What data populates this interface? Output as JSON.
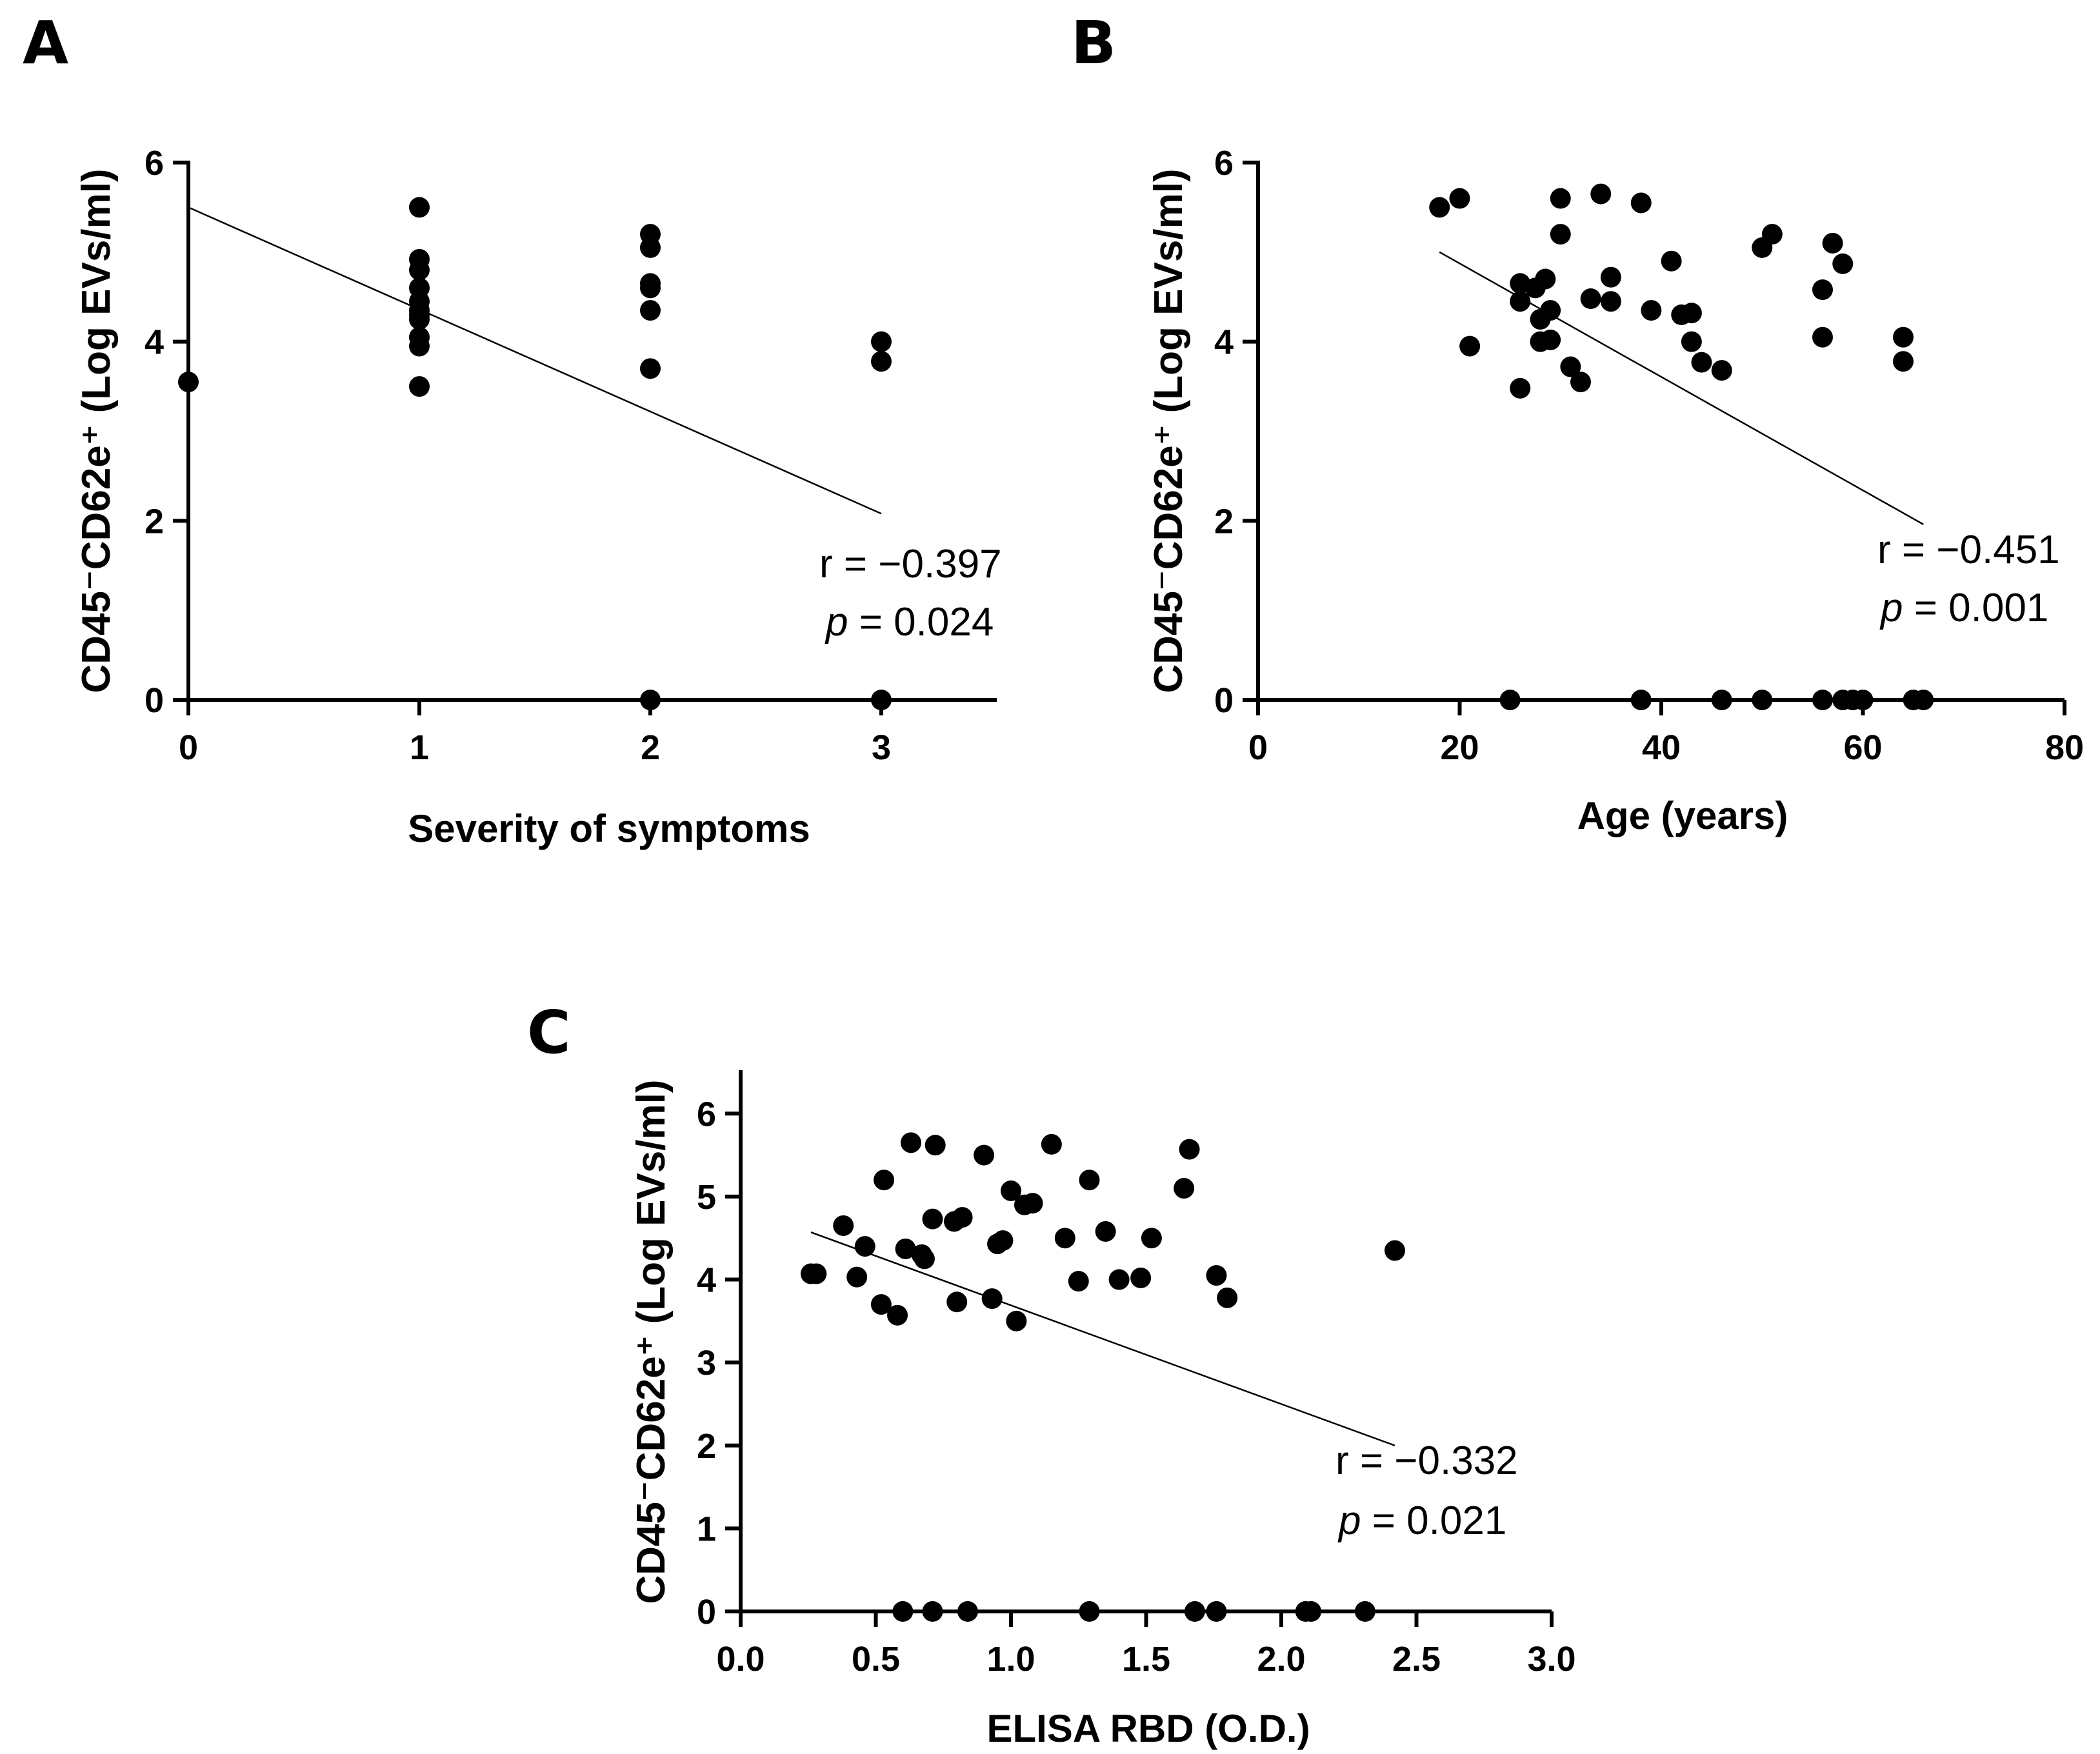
{
  "chart_data": [
    {
      "panel": "A",
      "type": "scatter",
      "xlabel": "Severity of symptoms",
      "ylabel": "CD45⁻CD62e⁺ (Log EVs/ml)",
      "xlim": [
        0,
        3.5
      ],
      "ylim": [
        0,
        6
      ],
      "xticks": [
        0,
        1,
        2,
        3
      ],
      "yticks": [
        0,
        2,
        4,
        6
      ],
      "x": [
        0,
        1,
        1,
        1,
        1,
        1,
        1,
        1,
        1,
        1,
        1,
        1,
        2,
        2,
        2,
        2,
        2,
        2,
        2,
        3,
        3,
        3
      ],
      "y": [
        3.55,
        5.5,
        4.92,
        4.8,
        4.6,
        4.45,
        4.35,
        4.3,
        4.05,
        3.95,
        3.5,
        4.25,
        5.2,
        5.05,
        4.65,
        4.6,
        4.35,
        3.7,
        0,
        4.0,
        3.78,
        0
      ],
      "fit_line": {
        "x": [
          0,
          3
        ],
        "y": [
          5.5,
          2.08
        ]
      },
      "annotation": {
        "r": "r = −0.397",
        "p_label": "p",
        "p_value": " = 0.024"
      }
    },
    {
      "panel": "B",
      "type": "scatter",
      "xlabel": "Age (years)",
      "ylabel": "CD45⁻CD62e⁺ (Log EVs/ml)",
      "xlim": [
        0,
        80
      ],
      "ylim": [
        0,
        6
      ],
      "xticks": [
        0,
        20,
        40,
        60,
        80
      ],
      "yticks": [
        0,
        2,
        4,
        6
      ],
      "x": [
        18,
        20,
        21,
        26,
        26,
        26,
        27.5,
        28,
        28,
        28.5,
        29,
        29,
        30,
        30,
        31,
        32,
        33,
        34,
        35,
        35,
        38,
        39,
        41,
        42,
        43,
        43,
        44,
        46,
        50,
        51,
        56,
        56,
        57,
        58,
        64,
        64,
        25,
        38,
        46,
        50,
        56,
        58,
        59,
        60,
        65,
        66
      ],
      "y": [
        5.5,
        5.6,
        3.95,
        4.65,
        4.45,
        3.48,
        4.6,
        4.25,
        4.0,
        4.7,
        4.35,
        4.02,
        5.6,
        5.2,
        3.72,
        3.55,
        4.48,
        5.65,
        4.72,
        4.45,
        5.55,
        4.35,
        4.9,
        4.3,
        4.32,
        4.0,
        3.77,
        3.68,
        5.05,
        5.2,
        4.58,
        4.05,
        5.1,
        4.87,
        4.05,
        3.78,
        0,
        0,
        0,
        0,
        0,
        0,
        0,
        0,
        0,
        0
      ],
      "fit_line": {
        "x": [
          18,
          66
        ],
        "y": [
          5.0,
          1.96
        ]
      },
      "annotation": {
        "r": "r = −0.451",
        "p_label": "p",
        "p_value": " = 0.001"
      }
    },
    {
      "panel": "C",
      "type": "scatter",
      "xlabel": "ELISA RBD (O.D.)",
      "ylabel": "CD45⁻CD62e⁺ (Log EVs/ml)",
      "xlim": [
        0,
        3.0
      ],
      "ylim": [
        0,
        6.5
      ],
      "xticks": [
        "0.0",
        "0.5",
        "1.0",
        "1.5",
        "2.0",
        "2.5",
        "3.0"
      ],
      "yticks": [
        0,
        1,
        2,
        3,
        4,
        5,
        6
      ],
      "x": [
        0.26,
        0.28,
        0.38,
        0.43,
        0.46,
        0.52,
        0.53,
        0.58,
        0.61,
        0.63,
        0.67,
        0.68,
        0.71,
        0.72,
        0.79,
        0.8,
        0.82,
        0.9,
        0.93,
        0.95,
        0.97,
        1.0,
        1.02,
        1.05,
        1.08,
        1.15,
        1.2,
        1.25,
        1.29,
        1.35,
        1.4,
        1.48,
        1.52,
        1.64,
        1.66,
        1.76,
        1.8,
        2.42,
        0.6,
        0.71,
        0.84,
        1.29,
        1.68,
        1.76,
        2.09,
        2.11,
        2.31
      ],
      "y": [
        4.07,
        4.07,
        4.65,
        4.03,
        4.4,
        3.7,
        5.2,
        3.57,
        4.37,
        5.65,
        4.3,
        4.25,
        4.73,
        5.62,
        4.7,
        3.73,
        4.75,
        5.5,
        3.77,
        4.43,
        4.47,
        5.07,
        3.5,
        4.9,
        4.92,
        5.63,
        4.5,
        3.98,
        5.2,
        4.58,
        4.0,
        4.02,
        4.5,
        5.1,
        5.57,
        4.05,
        3.78,
        4.35,
        0,
        0,
        0,
        0,
        0,
        0,
        0,
        0,
        0
      ],
      "fit_line": {
        "x": [
          0.26,
          2.42
        ],
        "y": [
          4.57,
          2.0
        ]
      },
      "annotation": {
        "r": "r = −0.332",
        "p_label": "p",
        "p_value": " = 0.021"
      }
    }
  ]
}
